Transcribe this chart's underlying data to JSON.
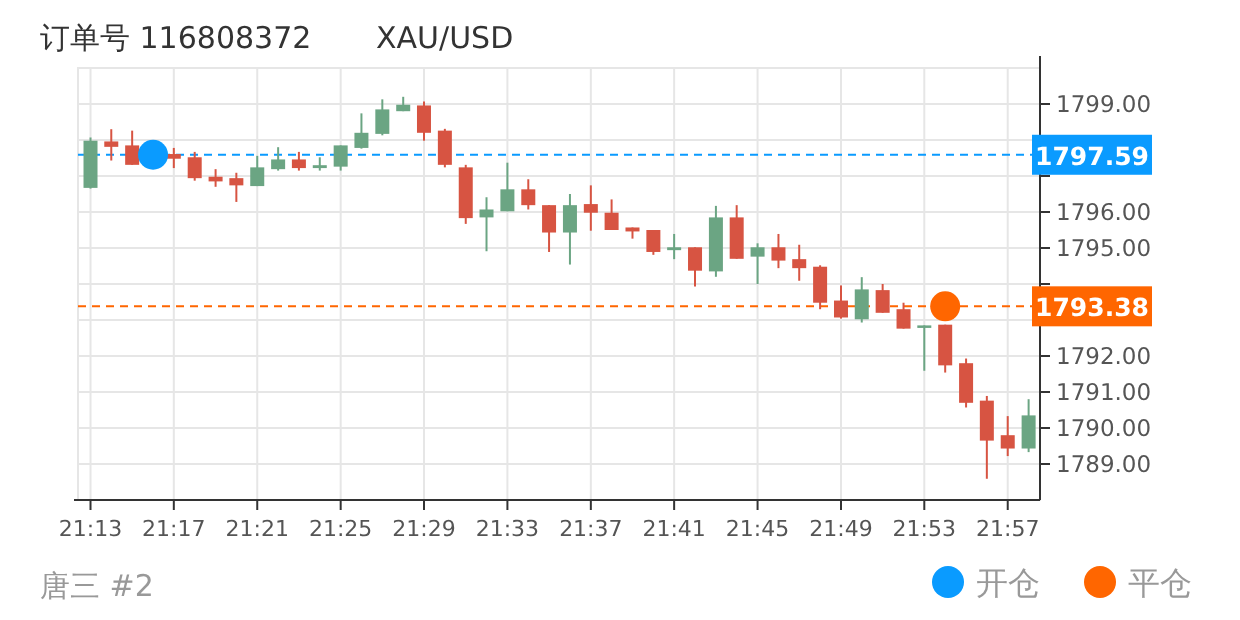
{
  "chart_data": {
    "type": "candlestick",
    "title": "订单号 116808372",
    "subtitle": "XAU/USD",
    "x": [
      21.2167,
      21.2333,
      21.25,
      21.2833,
      21.3,
      21.3167,
      21.3333,
      21.35,
      21.3667,
      21.3833,
      21.4,
      21.4167,
      21.4333,
      21.45,
      21.4667,
      21.4833,
      21.5,
      21.5167,
      21.5333,
      21.55,
      21.5667,
      21.5833,
      21.6,
      21.6167,
      21.6333,
      21.65,
      21.6667,
      21.6833,
      21.7,
      21.7167,
      21.7333,
      21.75,
      21.7667,
      21.7833,
      21.8,
      21.8167,
      21.8333,
      21.85,
      21.8667,
      21.8833,
      21.9,
      21.9167,
      21.9333,
      21.95,
      21.9667
    ],
    "ohlc": [
      [
        1796.67,
        1798.07,
        1796.65,
        1797.98
      ],
      [
        1797.96,
        1798.3,
        1797.43,
        1797.81
      ],
      [
        1797.85,
        1798.26,
        1797.31,
        1797.31
      ],
      [
        1797.61,
        1797.78,
        1797.22,
        1797.48
      ],
      [
        1797.52,
        1797.67,
        1796.87,
        1796.94
      ],
      [
        1796.98,
        1797.19,
        1796.7,
        1796.85
      ],
      [
        1796.94,
        1797.09,
        1796.28,
        1796.74
      ],
      [
        1796.72,
        1797.56,
        1796.72,
        1797.24
      ],
      [
        1797.19,
        1797.8,
        1797.15,
        1797.46
      ],
      [
        1797.46,
        1797.67,
        1797.15,
        1797.22
      ],
      [
        1797.22,
        1797.52,
        1797.15,
        1797.3
      ],
      [
        1797.26,
        1797.85,
        1797.15,
        1797.85
      ],
      [
        1797.78,
        1798.74,
        1797.76,
        1798.2
      ],
      [
        1798.17,
        1799.13,
        1798.13,
        1798.85
      ],
      [
        1798.8,
        1799.2,
        1798.8,
        1798.98
      ],
      [
        1798.96,
        1799.07,
        1797.98,
        1798.2
      ],
      [
        1798.26,
        1798.31,
        1797.24,
        1797.31
      ],
      [
        1797.24,
        1797.31,
        1795.67,
        1795.83
      ],
      [
        1795.85,
        1796.41,
        1794.91,
        1796.07
      ],
      [
        1796.02,
        1797.37,
        1796.02,
        1796.63
      ],
      [
        1796.63,
        1796.91,
        1796.07,
        1796.19
      ],
      [
        1796.19,
        1796.19,
        1794.89,
        1795.43
      ],
      [
        1795.43,
        1796.5,
        1794.54,
        1796.19
      ],
      [
        1796.22,
        1796.74,
        1795.48,
        1795.98
      ],
      [
        1795.98,
        1796.35,
        1795.5,
        1795.5
      ],
      [
        1795.57,
        1795.57,
        1795.26,
        1795.46
      ],
      [
        1795.5,
        1795.5,
        1794.81,
        1794.89
      ],
      [
        1794.94,
        1795.39,
        1794.69,
        1795.02
      ],
      [
        1795.02,
        1795.02,
        1793.93,
        1794.37
      ],
      [
        1794.35,
        1796.17,
        1794.2,
        1795.85
      ],
      [
        1795.85,
        1796.19,
        1794.7,
        1794.7
      ],
      [
        1794.76,
        1795.13,
        1794.0,
        1795.02
      ],
      [
        1795.02,
        1795.39,
        1794.44,
        1794.65
      ],
      [
        1794.69,
        1795.09,
        1794.09,
        1794.44
      ],
      [
        1794.48,
        1794.52,
        1793.3,
        1793.48
      ],
      [
        1793.54,
        1793.96,
        1793.04,
        1793.07
      ],
      [
        1793.02,
        1794.19,
        1792.93,
        1793.85
      ],
      [
        1793.83,
        1794.0,
        1793.2,
        1793.2
      ],
      [
        1793.3,
        1793.48,
        1792.76,
        1792.76
      ],
      [
        1792.78,
        1792.85,
        1791.59,
        1792.85
      ],
      [
        1792.87,
        1792.87,
        1791.54,
        1791.74
      ],
      [
        1791.8,
        1791.93,
        1790.57,
        1790.7
      ],
      [
        1790.76,
        1790.89,
        1788.59,
        1789.65
      ],
      [
        1789.8,
        1790.33,
        1789.22,
        1789.43
      ],
      [
        1789.43,
        1790.8,
        1789.33,
        1790.35
      ]
    ],
    "series": [
      {
        "name": "开仓",
        "type": "scatter",
        "color": "#0a9bff",
        "x": [
          21.2667
        ],
        "values": [
          1797.59
        ]
      },
      {
        "name": "平仓",
        "type": "scatter",
        "color": "#ff6600",
        "x": [
          21.9
        ],
        "values": [
          1793.38
        ]
      }
    ],
    "marker": "circle",
    "xlim": [
      21.2067,
      21.9758
    ],
    "xticks": [
      {
        "value": 21.2167,
        "label": "21:13"
      },
      {
        "value": 21.2833,
        "label": "21:17"
      },
      {
        "value": 21.35,
        "label": "21:21"
      },
      {
        "value": 21.4167,
        "label": "21:25"
      },
      {
        "value": 21.4833,
        "label": "21:29"
      },
      {
        "value": 21.55,
        "label": "21:33"
      },
      {
        "value": 21.6167,
        "label": "21:37"
      },
      {
        "value": 21.6833,
        "label": "21:41"
      },
      {
        "value": 21.75,
        "label": "21:45"
      },
      {
        "value": 21.8167,
        "label": "21:49"
      },
      {
        "value": 21.8833,
        "label": "21:53"
      },
      {
        "value": 21.95,
        "label": "21:57"
      }
    ],
    "ylim": [
      1788,
      1800
    ],
    "yticks": [
      {
        "value": 1789,
        "label": "1789.00"
      },
      {
        "value": 1790,
        "label": "1790.00"
      },
      {
        "value": 1791,
        "label": "1791.00"
      },
      {
        "value": 1792,
        "label": "1792.00"
      },
      {
        "value": 1793,
        "label": null
      },
      {
        "value": 1794,
        "label": null
      },
      {
        "value": 1795,
        "label": "1795.00"
      },
      {
        "value": 1796,
        "label": "1796.00"
      },
      {
        "value": 1797,
        "label": null
      },
      {
        "value": 1798,
        "label": null
      },
      {
        "value": 1799,
        "label": "1799.00"
      }
    ],
    "ref_lines": [
      {
        "axis": "y",
        "value": 1797.59,
        "label": "1797.59",
        "color": "#0a9bff",
        "line_style": "dashed"
      },
      {
        "axis": "y",
        "value": 1793.38,
        "label": "1793.38",
        "color": "#ff6600",
        "line_style": "dashed"
      }
    ],
    "grid": true,
    "legend": "bottom right",
    "annotations": [
      "唐三 #2"
    ]
  }
}
